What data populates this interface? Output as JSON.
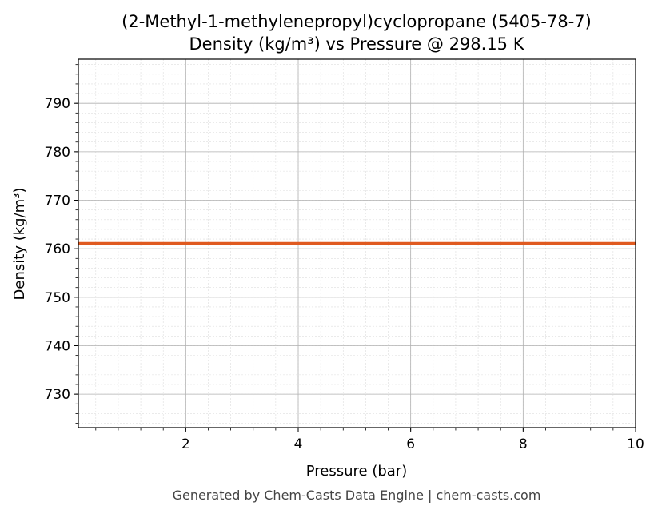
{
  "chart_data": {
    "type": "line",
    "title": "(2-Methyl-1-methylenepropyl)cyclopropane (5405-78-7)",
    "subtitle": "Density (kg/m³) vs Pressure @ 298.15 K",
    "xlabel": "Pressure (bar)",
    "ylabel": "Density (kg/m³)",
    "xlim": [
      0.09,
      10
    ],
    "ylim": [
      723.1,
      799.1
    ],
    "xticks": [
      2,
      4,
      6,
      8,
      10
    ],
    "yticks": [
      730,
      740,
      750,
      760,
      770,
      780,
      790
    ],
    "grid": true,
    "series": [
      {
        "x": [
          0.09,
          1,
          2,
          3,
          4,
          5,
          6,
          7,
          8,
          9,
          10
        ],
        "y": [
          761.1,
          761.1,
          761.1,
          761.1,
          761.1,
          761.1,
          761.1,
          761.1,
          761.1,
          761.1,
          761.1
        ],
        "color": "#e05a20"
      }
    ]
  },
  "footer": "Generated by Chem-Casts Data Engine | chem-casts.com"
}
